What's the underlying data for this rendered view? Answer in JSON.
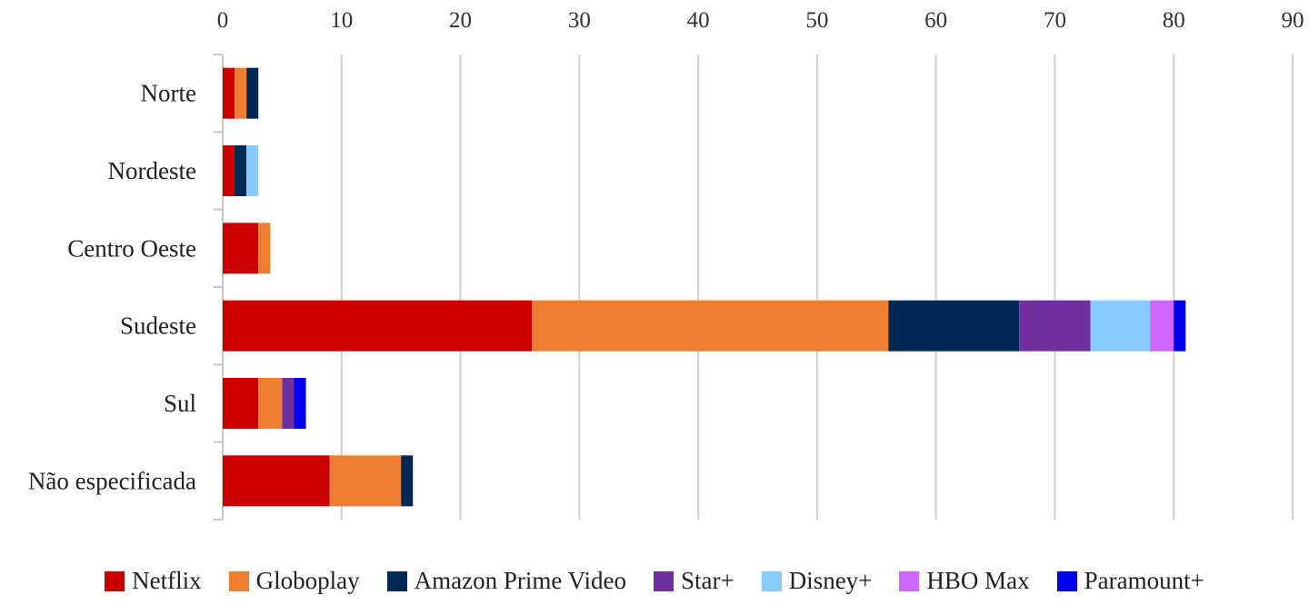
{
  "chart_data": {
    "type": "bar",
    "orientation": "horizontal",
    "stacked": true,
    "categories": [
      "Norte",
      "Nordeste",
      "Centro Oeste",
      "Sudeste",
      "Sul",
      "Não especificada"
    ],
    "xlim": [
      0,
      90
    ],
    "xticks": [
      0,
      10,
      20,
      30,
      40,
      50,
      60,
      70,
      80,
      90
    ],
    "grid": true,
    "legend_position": "bottom",
    "series": [
      {
        "name": "Netflix",
        "color": "#CC0000",
        "values": [
          1,
          1,
          3,
          26,
          3,
          9
        ]
      },
      {
        "name": "Globoplay",
        "color": "#ED7D31",
        "values": [
          1,
          0,
          1,
          30,
          2,
          6
        ]
      },
      {
        "name": "Amazon Prime Video",
        "color": "#002855",
        "values": [
          1,
          1,
          0,
          11,
          0,
          1
        ]
      },
      {
        "name": "Star+",
        "color": "#7030A0",
        "values": [
          0,
          0,
          0,
          6,
          1,
          0
        ]
      },
      {
        "name": "Disney+",
        "color": "#88CCFF",
        "values": [
          0,
          1,
          0,
          5,
          0,
          0
        ]
      },
      {
        "name": "HBO Max",
        "color": "#CC66FF",
        "values": [
          0,
          0,
          0,
          2,
          0,
          0
        ]
      },
      {
        "name": "Paramount+",
        "color": "#0000EE",
        "values": [
          0,
          0,
          0,
          1,
          1,
          0
        ]
      }
    ]
  }
}
